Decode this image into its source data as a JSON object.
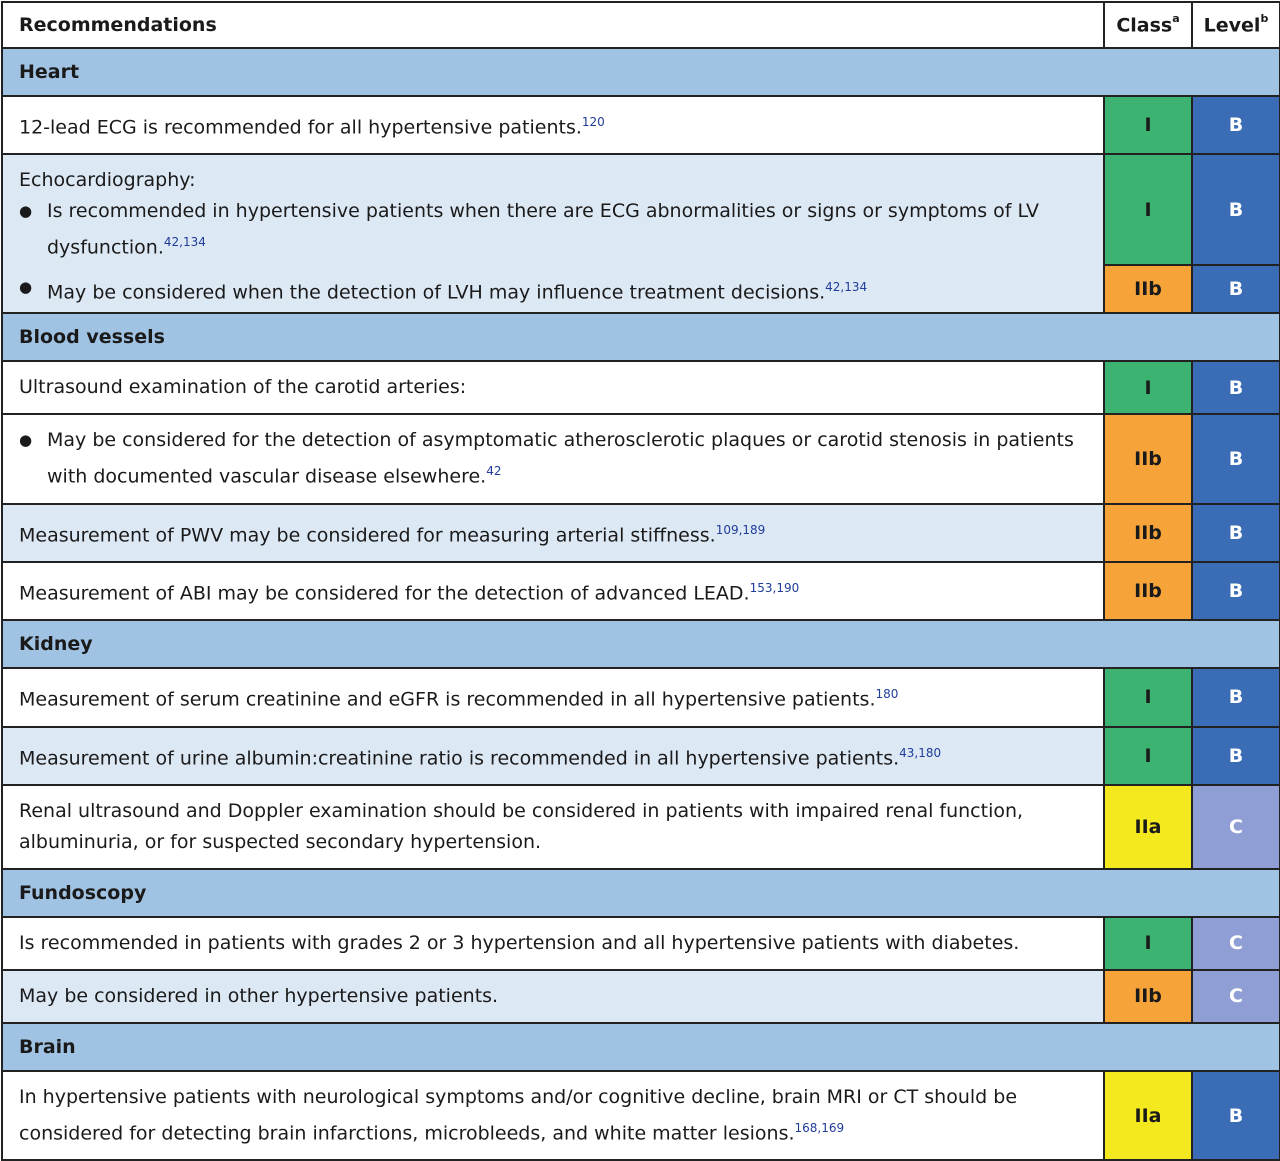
{
  "header": {
    "recommendations": "Recommendations",
    "class": "Class",
    "class_sup": "a",
    "level": "Level",
    "level_sup": "b"
  },
  "sections": {
    "heart": "Heart",
    "vessels": "Blood vessels",
    "kidney": "Kidney",
    "fundoscopy": "Fundoscopy",
    "brain": "Brain"
  },
  "rows": {
    "ecg": {
      "text": "12-lead ECG is recommended for all hypertensive patients.",
      "ref": "120",
      "class": "I",
      "level": "B"
    },
    "echo_title": "Echocardiography:",
    "echo1": {
      "text": "Is recommended in hypertensive patients when there are ECG abnormalities or signs or symptoms of LV dysfunction.",
      "ref": "42,134",
      "class": "I",
      "level": "B"
    },
    "echo2": {
      "text": "May be considered when the detection of LVH may influence treatment decisions.",
      "ref": "42,134",
      "class": "IIb",
      "level": "B"
    },
    "carotid": {
      "text": "Ultrasound examination of the carotid arteries:",
      "class": "I",
      "level": "B"
    },
    "carotid_b": {
      "text": "May be considered for the detection of asymptomatic atherosclerotic plaques or carotid stenosis in patients with documented vascular disease elsewhere.",
      "ref": "42",
      "class": "IIb",
      "level": "B"
    },
    "pwv": {
      "text": "Measurement of PWV may be considered for measuring arterial stiffness.",
      "ref": "109,189",
      "class": "IIb",
      "level": "B"
    },
    "abi": {
      "text": "Measurement of ABI may be considered for the detection of advanced LEAD.",
      "ref": "153,190",
      "class": "IIb",
      "level": "B"
    },
    "creat": {
      "text": "Measurement of serum creatinine and eGFR is recommended in all hypertensive patients.",
      "ref": "180",
      "class": "I",
      "level": "B"
    },
    "urine": {
      "text": "Measurement of urine albumin:creatinine ratio is recommended in all hypertensive patients.",
      "ref": "43,180",
      "class": "I",
      "level": "B"
    },
    "renal": {
      "text": "Renal ultrasound and Doppler examination should be considered in patients with impaired renal function, albuminuria, or for suspected secondary hypertension.",
      "class": "IIa",
      "level": "C"
    },
    "fundo1": {
      "text": "Is recommended in patients with grades 2 or 3 hypertension and all hypertensive patients with diabetes.",
      "class": "I",
      "level": "C"
    },
    "fundo2": {
      "text": "May be considered in other hypertensive patients.",
      "class": "IIb",
      "level": "C"
    },
    "brain": {
      "text": "In hypertensive patients with neurological symptoms and/or cognitive decline, brain MRI or CT should be considered for detecting brain infarctions, microbleeds, and white matter lesions.",
      "ref": "168,169",
      "class": "IIa",
      "level": "B"
    }
  },
  "colors": {
    "section_bg": "#a0c3e4",
    "alt_row_bg": "#dde8f5",
    "class_I": "#3cb371",
    "class_IIa": "#f4e81e",
    "class_IIb": "#f6a33a",
    "level_B": "#3a6db5",
    "level_C": "#8f9fd6"
  }
}
